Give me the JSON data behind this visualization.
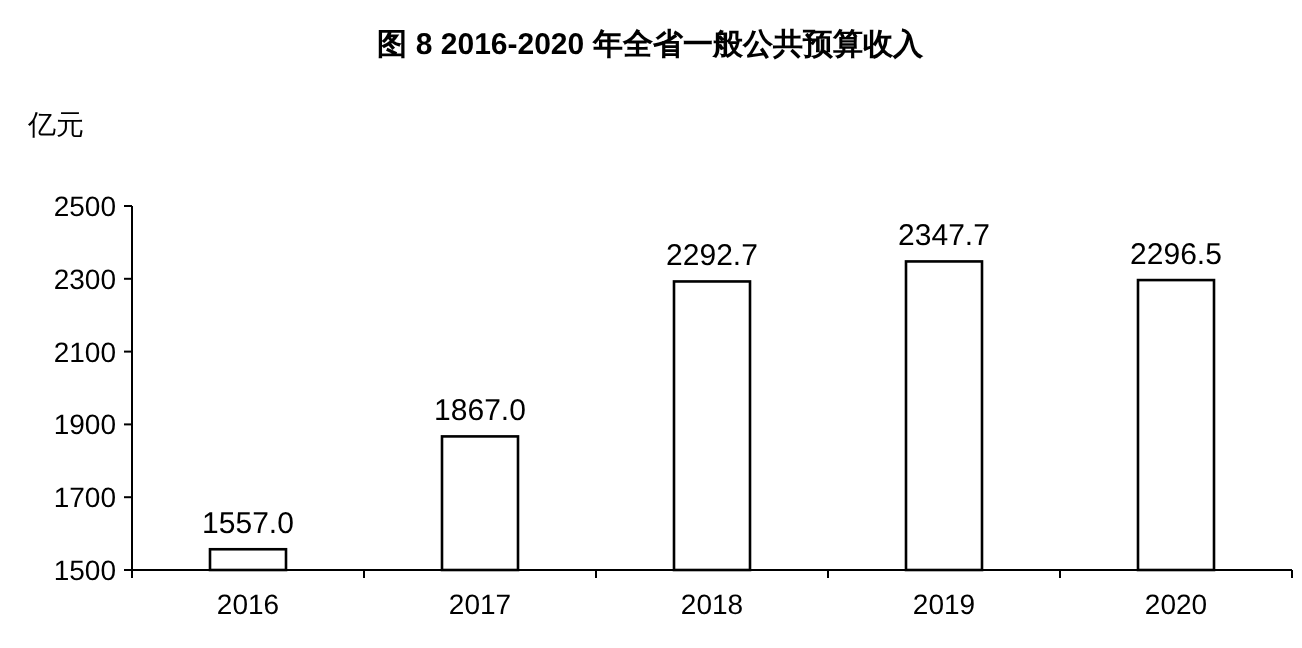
{
  "chart_data": {
    "type": "bar",
    "title": "图 8 2016-2020 年全省一般公共预算收入",
    "ylabel": "亿元",
    "categories": [
      "2016",
      "2017",
      "2018",
      "2019",
      "2020"
    ],
    "values": [
      1557.0,
      1867.0,
      2292.7,
      2347.7,
      2296.5
    ],
    "value_labels": [
      "1557.0",
      "1867.0",
      "2292.7",
      "2347.7",
      "2296.5"
    ],
    "color": "#ffffff",
    "ylim": [
      1500,
      2500
    ],
    "yticks": [
      1500,
      1700,
      1900,
      2100,
      2300,
      2500
    ],
    "grid": false
  }
}
